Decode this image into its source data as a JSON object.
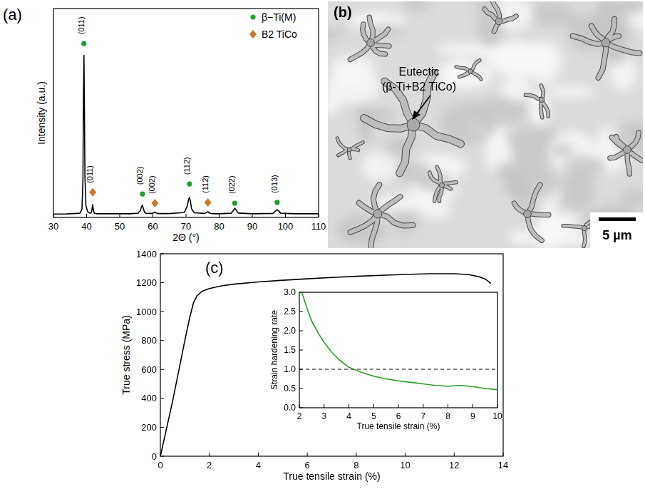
{
  "chart_data": [
    {
      "type": "line",
      "label": "(a)",
      "x_label": "2Θ (°)",
      "y_label": "Intensity (a.u.)",
      "xlim": [
        30,
        110
      ],
      "xticks": [
        30,
        40,
        50,
        60,
        70,
        80,
        90,
        100,
        110
      ],
      "ylim": [
        0,
        1.25
      ],
      "tick_labels": "x",
      "legend": "top-right",
      "series": [
        {
          "type": "line",
          "color": "#000000",
          "x": [
            30,
            34,
            38,
            38.6,
            38.9,
            39.05,
            39.2,
            39.35,
            39.5,
            39.8,
            40.3,
            41.0,
            41.5,
            41.7,
            41.85,
            42.0,
            42.3,
            43,
            48,
            53,
            55.5,
            56.2,
            56.6,
            56.85,
            57.1,
            57.5,
            58,
            59.6,
            60.3,
            60.6,
            60.9,
            61.5,
            65,
            69.5,
            70.4,
            70.8,
            71.05,
            71.3,
            71.7,
            72.5,
            75.6,
            76.3,
            76.6,
            76.9,
            77.6,
            80,
            83.6,
            84.3,
            84.7,
            85.1,
            85.7,
            90,
            96.2,
            97.0,
            97.5,
            97.9,
            98.6,
            103,
            110
          ],
          "values": [
            0.02,
            0.021,
            0.025,
            0.05,
            0.22,
            0.7,
            0.97,
            0.65,
            0.25,
            0.07,
            0.035,
            0.025,
            0.03,
            0.06,
            0.077,
            0.05,
            0.025,
            0.022,
            0.022,
            0.022,
            0.025,
            0.04,
            0.065,
            0.073,
            0.055,
            0.03,
            0.024,
            0.024,
            0.028,
            0.032,
            0.027,
            0.023,
            0.023,
            0.03,
            0.07,
            0.11,
            0.12,
            0.1,
            0.05,
            0.028,
            0.024,
            0.03,
            0.035,
            0.028,
            0.023,
            0.022,
            0.025,
            0.042,
            0.055,
            0.045,
            0.026,
            0.022,
            0.024,
            0.038,
            0.047,
            0.04,
            0.025,
            0.022,
            0.022
          ]
        },
        {
          "name": "β−Ti(M)",
          "type": "scatter",
          "marker": "circle",
          "color": "#1e9e34",
          "x": [
            39.2,
            56.85,
            71.05,
            84.7,
            97.5
          ],
          "values": [
            1.04,
            0.14,
            0.2,
            0.085,
            0.09
          ],
          "labels": [
            "(011)",
            "(002)",
            "(112)",
            "(022)",
            "(013)"
          ]
        },
        {
          "name": "B2 TiCo",
          "type": "scatter",
          "marker": "diamond",
          "color": "#c8782a",
          "x": [
            41.85,
            60.6,
            76.6
          ],
          "values": [
            0.15,
            0.085,
            0.09
          ],
          "labels": [
            "(011)",
            "(002)",
            "(112)"
          ]
        }
      ]
    },
    {
      "type": "image",
      "label": "(b)",
      "annotation": [
        "Eutectic",
        "(β-Ti+B2 TiCo)"
      ],
      "scale_bar": "5 µm"
    },
    {
      "type": "line",
      "label": "(c)",
      "x_label": "True tensile strain (%)",
      "y_label": "True stress (MPa)",
      "xlim": [
        0,
        14
      ],
      "xticks": [
        0,
        2,
        4,
        6,
        8,
        10,
        12,
        14
      ],
      "ylim": [
        0,
        1400
      ],
      "yticks": [
        0,
        200,
        400,
        600,
        800,
        1000,
        1200,
        1400
      ],
      "series": [
        {
          "color": "#000000",
          "x": [
            0,
            0.5,
            1.0,
            1.2,
            1.35,
            1.5,
            1.7,
            2,
            2.5,
            3,
            4,
            5,
            6,
            7,
            8,
            9,
            10,
            11,
            12,
            12.6,
            13,
            13.3,
            13.5
          ],
          "values": [
            0,
            380,
            800,
            960,
            1060,
            1110,
            1140,
            1160,
            1178,
            1190,
            1205,
            1217,
            1227,
            1236,
            1244,
            1251,
            1257,
            1262,
            1262,
            1256,
            1242,
            1222,
            1195
          ]
        }
      ],
      "inset": {
        "type": "line",
        "x_label": "True tensile strain (%)",
        "y_label": "Strain hardening rate",
        "xlim": [
          2,
          10
        ],
        "xticks": [
          2,
          3,
          4,
          5,
          6,
          7,
          8,
          9,
          10
        ],
        "ylim": [
          0,
          3.0
        ],
        "yticks": [
          {
            "value": 0,
            "label": "0.0"
          },
          {
            "value": 0.5,
            "label": "0.5"
          },
          {
            "value": 1,
            "label": "1.0"
          },
          {
            "value": 1.5,
            "label": "1.5"
          },
          {
            "value": 2,
            "label": "2.0"
          },
          {
            "value": 2.5,
            "label": "2.5"
          },
          {
            "value": 3,
            "label": "3.0"
          }
        ],
        "hline": 1,
        "series": [
          {
            "color": "#2a9d2a",
            "x": [
              2.1,
              2.3,
              2.5,
              2.8,
              3.0,
              3.3,
              3.6,
              4.0,
              4.5,
              5.0,
              5.5,
              6.0,
              6.5,
              7.0,
              7.5,
              8.0,
              8.5,
              9.0,
              9.5,
              10.0
            ],
            "values": [
              3.0,
              2.6,
              2.25,
              1.9,
              1.7,
              1.45,
              1.25,
              1.05,
              0.92,
              0.82,
              0.75,
              0.7,
              0.66,
              0.62,
              0.58,
              0.56,
              0.58,
              0.55,
              0.5,
              0.47
            ]
          }
        ]
      }
    }
  ]
}
